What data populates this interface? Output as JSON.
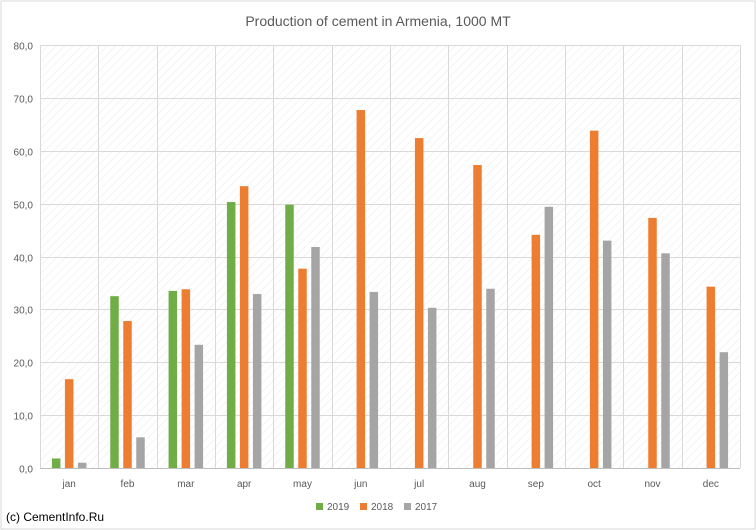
{
  "chart_data": {
    "type": "bar",
    "title": "Production of cement in Armenia, 1000 MT",
    "xlabel": "",
    "ylabel": "",
    "categories": [
      "jan",
      "feb",
      "mar",
      "apr",
      "may",
      "jun",
      "jul",
      "aug",
      "sep",
      "oct",
      "nov",
      "dec"
    ],
    "series": [
      {
        "name": "2019",
        "color": "#70ad47",
        "values": [
          1.8,
          32.5,
          33.5,
          50.3,
          49.8,
          null,
          null,
          null,
          null,
          null,
          null,
          null
        ]
      },
      {
        "name": "2018",
        "color": "#ed7d31",
        "values": [
          16.8,
          27.8,
          33.8,
          53.3,
          37.7,
          67.7,
          62.4,
          57.3,
          44.1,
          63.8,
          47.3,
          34.3
        ]
      },
      {
        "name": "2017",
        "color": "#a5a5a5",
        "values": [
          1.0,
          5.8,
          23.3,
          32.9,
          41.8,
          33.3,
          30.3,
          33.9,
          49.4,
          43.0,
          40.6,
          21.9
        ]
      }
    ],
    "ylim": [
      0,
      80
    ],
    "yticks": [
      0,
      10,
      20,
      30,
      40,
      50,
      60,
      70,
      80
    ],
    "ytick_labels": [
      "0,0",
      "10,0",
      "20,0",
      "30,0",
      "40,0",
      "50,0",
      "60,0",
      "70,0",
      "80,0"
    ],
    "grid": true,
    "legend_position": "bottom"
  },
  "credit": "(c) CementInfo.Ru"
}
